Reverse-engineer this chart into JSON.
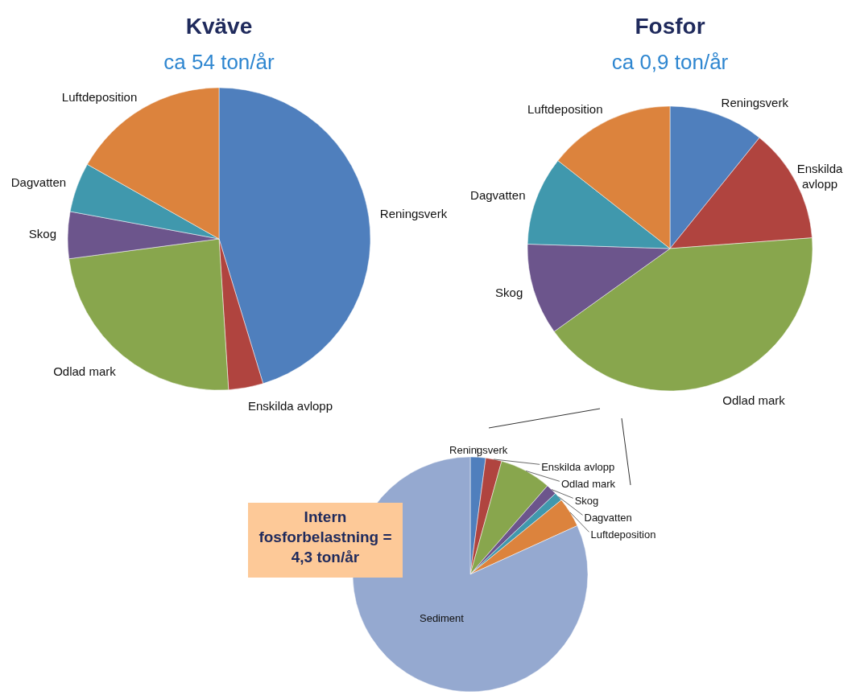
{
  "chart_data": [
    {
      "type": "pie",
      "title": "Kväve",
      "subtitle": "ca 54 ton/år",
      "categories": [
        "Reningsverk",
        "Enskilda avlopp",
        "Odlad mark",
        "Skog",
        "Dagvatten",
        "Luftdeposition"
      ],
      "values": [
        45.3,
        3.7,
        23.9,
        5.0,
        5.3,
        16.8
      ],
      "colors": [
        "#4f7fbd",
        "#b0443f",
        "#88a64d",
        "#6c558c",
        "#4098ad",
        "#dc833d"
      ]
    },
    {
      "type": "pie",
      "title": "Fosfor",
      "subtitle": "ca 0,9 ton/år",
      "categories": [
        "Reningsverk",
        "Enskilda avlopp",
        "Odlad mark",
        "Skog",
        "Dagvatten",
        "Luftdeposition"
      ],
      "values": [
        10.8,
        13.0,
        41.3,
        10.4,
        10.1,
        14.4
      ],
      "colors": [
        "#4f7fbd",
        "#b0443f",
        "#88a64d",
        "#6c558c",
        "#4098ad",
        "#dc833d"
      ]
    },
    {
      "type": "pie",
      "categories": [
        "Reningsverk",
        "Enskilda avlopp",
        "Odlad mark",
        "Skog",
        "Dagvatten",
        "Luftdeposition",
        "Sediment"
      ],
      "values": [
        2.1,
        2.2,
        7.1,
        1.5,
        1.2,
        4.1,
        81.8
      ],
      "colors": [
        "#4f7fbd",
        "#b0443f",
        "#88a64d",
        "#6c558c",
        "#4098ad",
        "#dc833d",
        "#95a9d0"
      ],
      "annotations": [
        "Intern fosforbelastning = 4,3 ton/år"
      ]
    }
  ]
}
